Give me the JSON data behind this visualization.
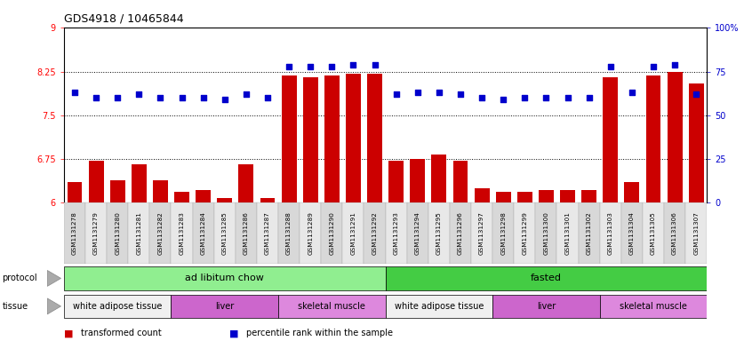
{
  "title": "GDS4918 / 10465844",
  "samples": [
    "GSM1131278",
    "GSM1131279",
    "GSM1131280",
    "GSM1131281",
    "GSM1131282",
    "GSM1131283",
    "GSM1131284",
    "GSM1131285",
    "GSM1131286",
    "GSM1131287",
    "GSM1131288",
    "GSM1131289",
    "GSM1131290",
    "GSM1131291",
    "GSM1131292",
    "GSM1131293",
    "GSM1131294",
    "GSM1131295",
    "GSM1131296",
    "GSM1131297",
    "GSM1131298",
    "GSM1131299",
    "GSM1131300",
    "GSM1131301",
    "GSM1131302",
    "GSM1131303",
    "GSM1131304",
    "GSM1131305",
    "GSM1131306",
    "GSM1131307"
  ],
  "bar_values": [
    6.35,
    6.72,
    6.38,
    6.65,
    6.38,
    6.18,
    6.22,
    6.08,
    6.65,
    6.08,
    8.18,
    8.15,
    8.18,
    8.22,
    8.22,
    6.72,
    6.75,
    6.82,
    6.72,
    6.25,
    6.18,
    6.18,
    6.22,
    6.22,
    6.22,
    8.15,
    6.35,
    8.18,
    8.25,
    8.05
  ],
  "blue_values": [
    63,
    60,
    60,
    62,
    60,
    60,
    60,
    59,
    62,
    60,
    78,
    78,
    78,
    79,
    79,
    62,
    63,
    63,
    62,
    60,
    59,
    60,
    60,
    60,
    60,
    78,
    63,
    78,
    79,
    62
  ],
  "ylim_left": [
    6,
    9
  ],
  "ylim_right": [
    0,
    100
  ],
  "yticks_left": [
    6,
    6.75,
    7.5,
    8.25,
    9
  ],
  "yticks_right": [
    0,
    25,
    50,
    75,
    100
  ],
  "bar_color": "#cc0000",
  "dot_color": "#0000cc",
  "hline_values": [
    6.75,
    7.5,
    8.25
  ],
  "protocol_groups": [
    {
      "label": "ad libitum chow",
      "start": 0,
      "end": 14,
      "color": "#90ee90"
    },
    {
      "label": "fasted",
      "start": 15,
      "end": 29,
      "color": "#44cc44"
    }
  ],
  "tissue_groups": [
    {
      "label": "white adipose tissue",
      "start": 0,
      "end": 4,
      "color": "#f0f0f0"
    },
    {
      "label": "liver",
      "start": 5,
      "end": 9,
      "color": "#cc66cc"
    },
    {
      "label": "skeletal muscle",
      "start": 10,
      "end": 14,
      "color": "#dd88dd"
    },
    {
      "label": "white adipose tissue",
      "start": 15,
      "end": 19,
      "color": "#f0f0f0"
    },
    {
      "label": "liver",
      "start": 20,
      "end": 24,
      "color": "#cc66cc"
    },
    {
      "label": "skeletal muscle",
      "start": 25,
      "end": 29,
      "color": "#dd88dd"
    }
  ],
  "legend_items": [
    {
      "label": "transformed count",
      "color": "#cc0000"
    },
    {
      "label": "percentile rank within the sample",
      "color": "#0000cc"
    }
  ],
  "tick_bg_colors": [
    "#d8d8d8",
    "#e8e8e8"
  ]
}
